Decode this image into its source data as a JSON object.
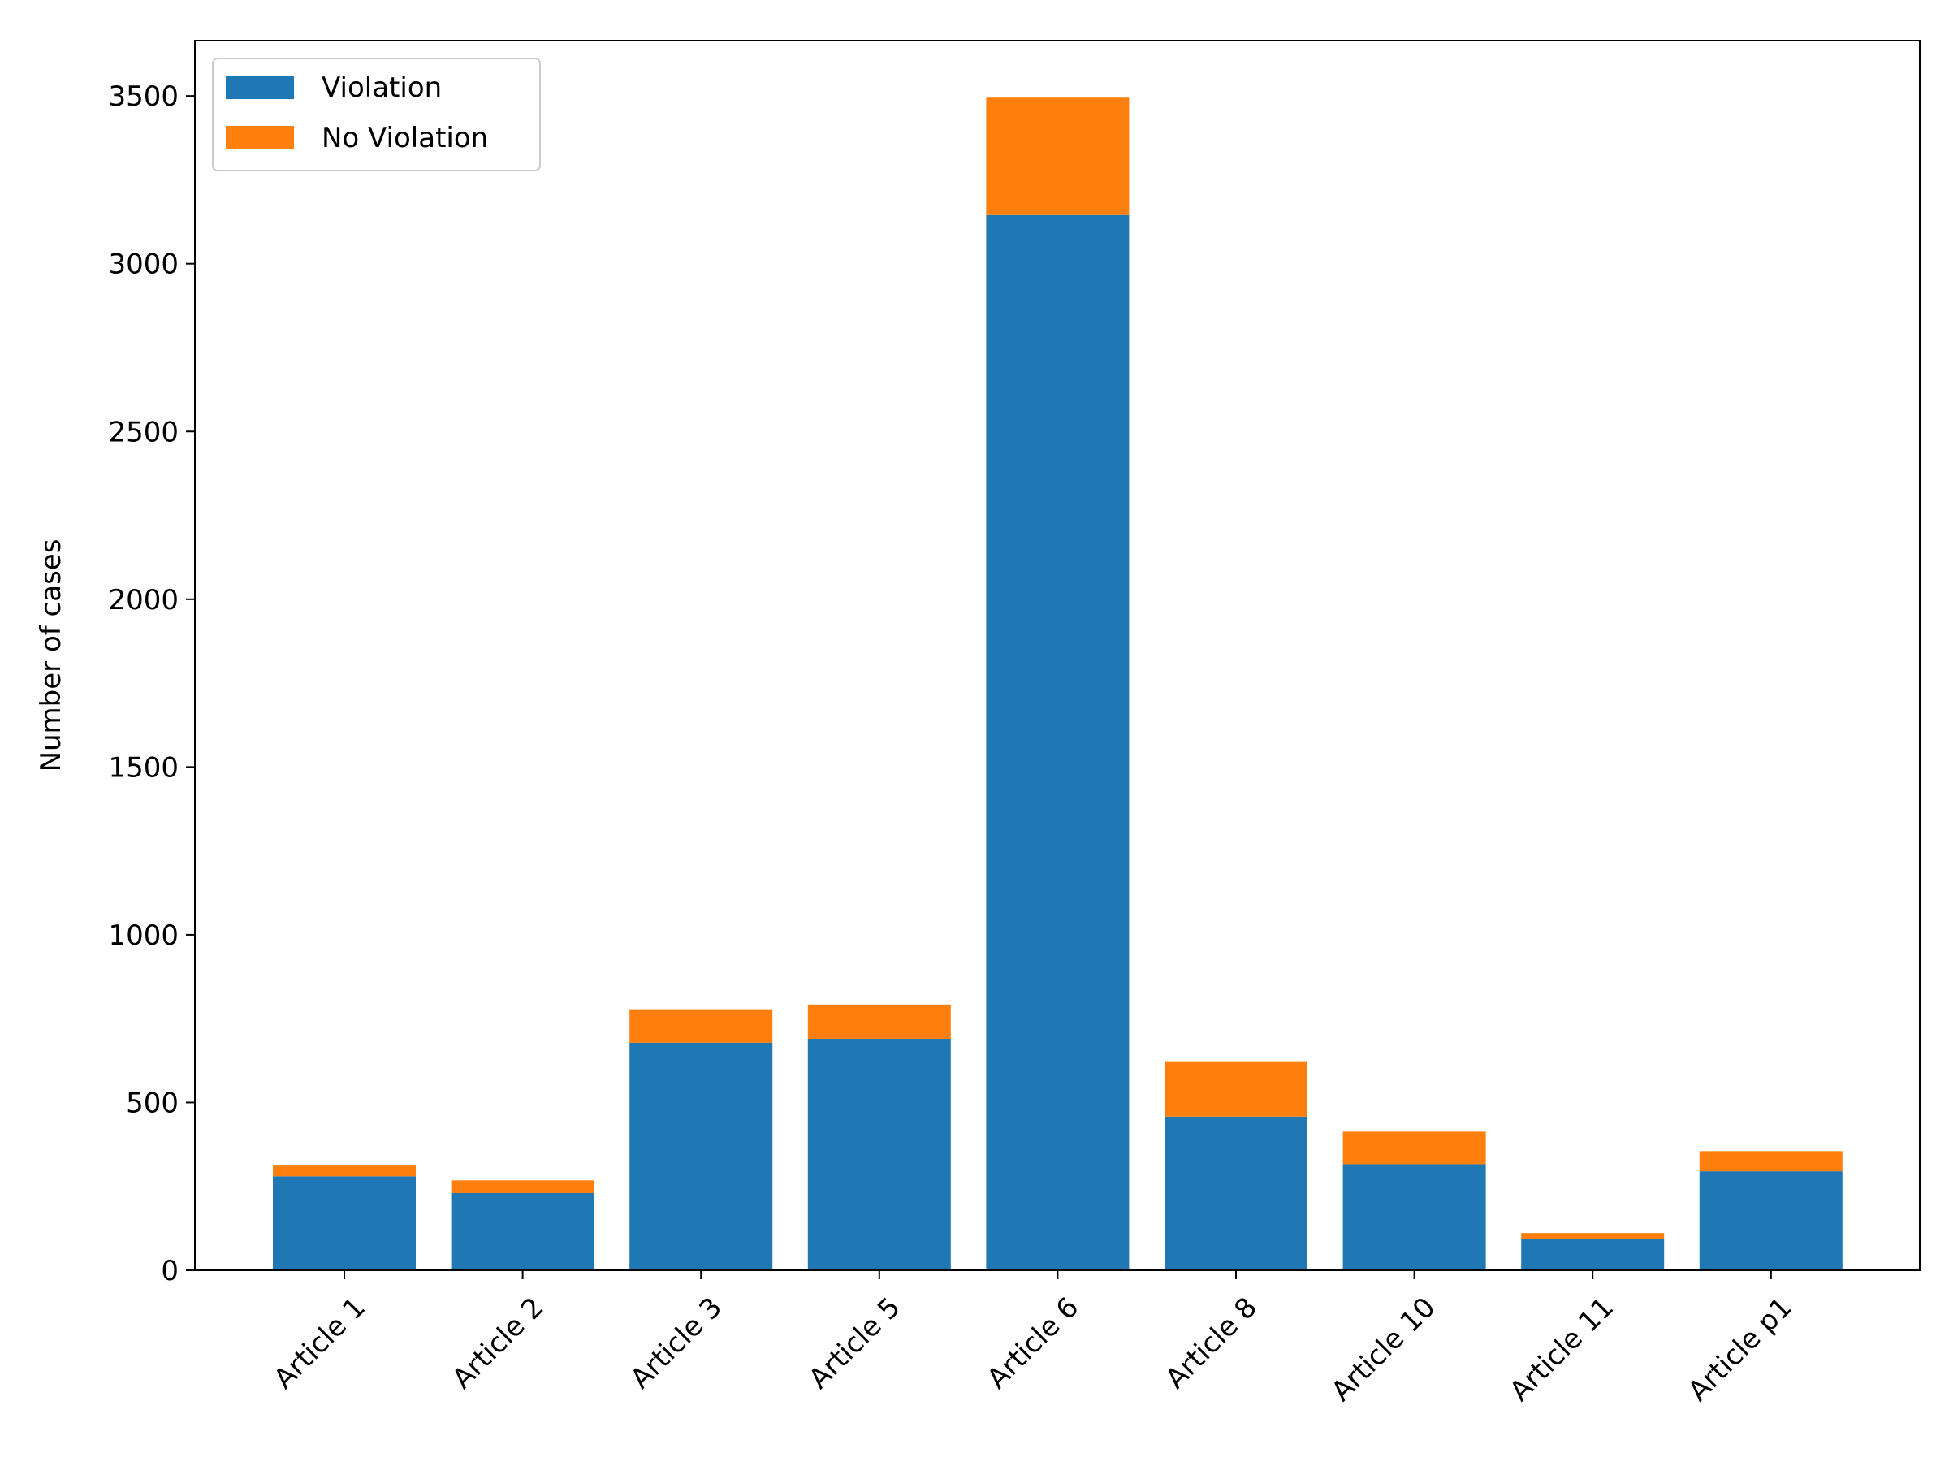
{
  "chart_data": {
    "type": "bar",
    "stacked": true,
    "categories": [
      "Article 1",
      "Article 2",
      "Article 3",
      "Article 5",
      "Article 6",
      "Article 8",
      "Article 10",
      "Article 11",
      "Article p1"
    ],
    "series": [
      {
        "name": "Violation",
        "color": "#1f77b4",
        "values": [
          280,
          230,
          678,
          690,
          3145,
          458,
          316,
          93,
          295
        ]
      },
      {
        "name": "No Violation",
        "color": "#ff7f0e",
        "values": [
          32,
          38,
          100,
          102,
          350,
          165,
          97,
          18,
          60
        ]
      }
    ],
    "xlabel": "",
    "ylabel": "Number of cases",
    "ylim": [
      0,
      3665
    ],
    "yticks": [
      0,
      500,
      1000,
      1500,
      2000,
      2500,
      3000,
      3500
    ],
    "xtick_rotation": 45,
    "grid": false,
    "legend_position": "top-left"
  }
}
